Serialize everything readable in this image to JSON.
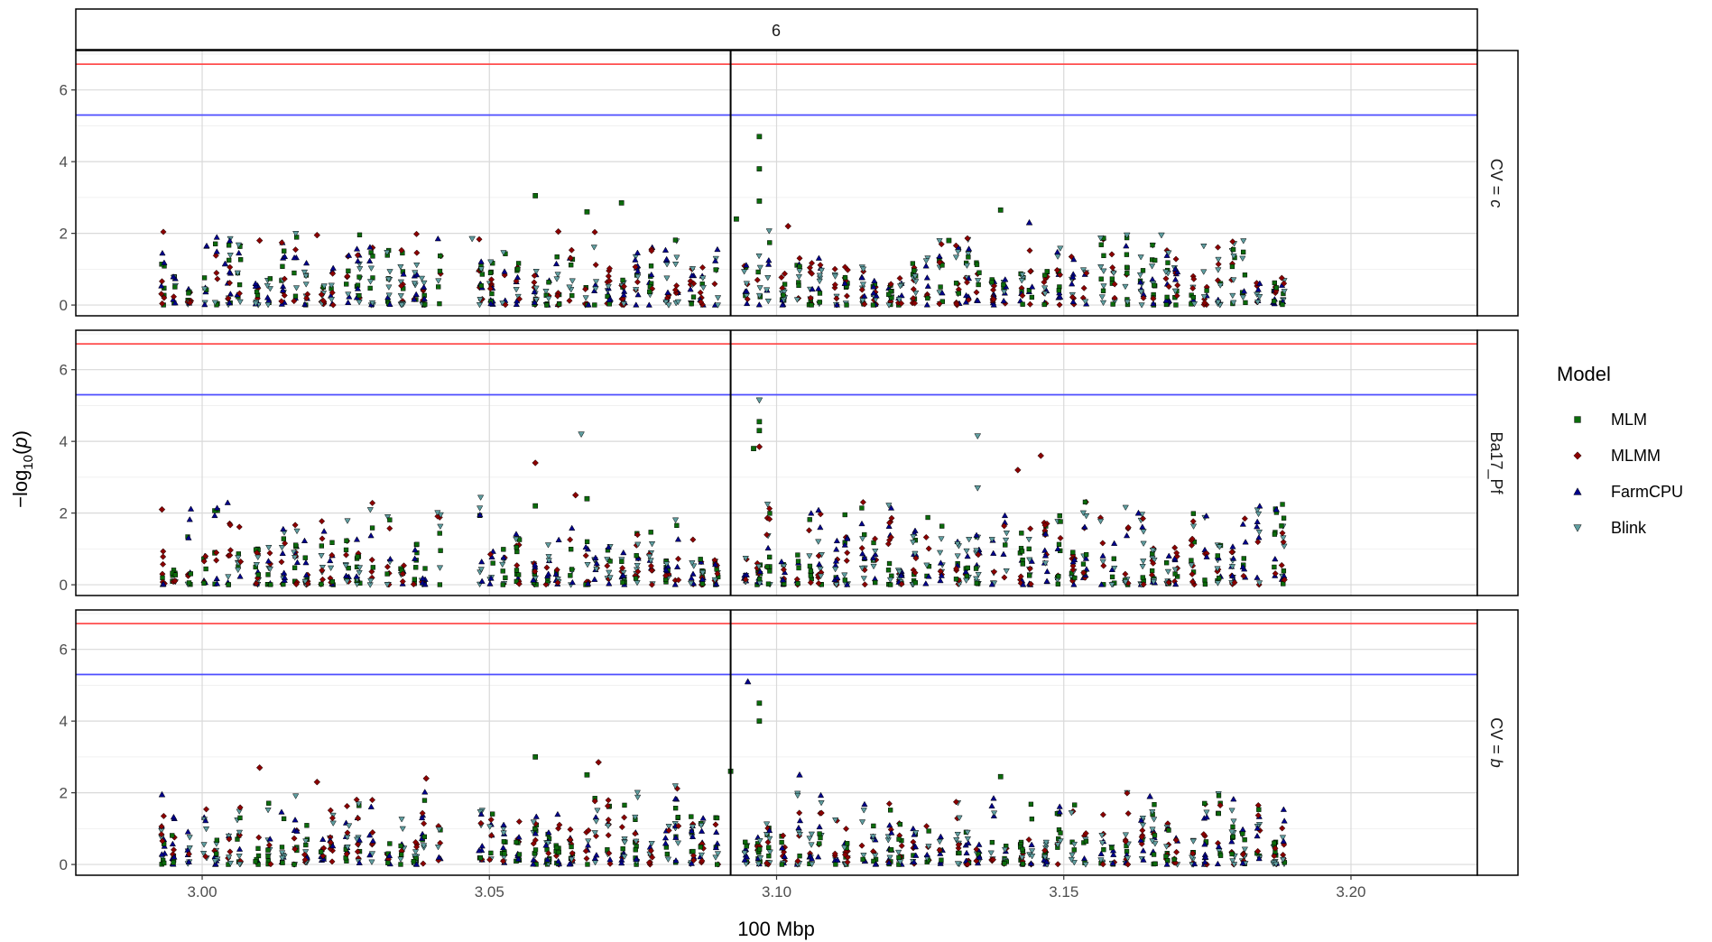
{
  "chart_data": {
    "type": "scatter",
    "facet_column_label": "6",
    "facet_row_labels": [
      "CV = c",
      "Ba17_Pf",
      "CV = b"
    ],
    "xlabel": "100 Mbp",
    "ylabel": "-log10(p)",
    "xlim": [
      2.978,
      3.222
    ],
    "ylim": [
      -0.3,
      7.1
    ],
    "x_ticks": [
      "3.00",
      "3.05",
      "3.10",
      "3.15",
      "3.20"
    ],
    "x_tick_values": [
      3.0,
      3.05,
      3.1,
      3.15,
      3.2
    ],
    "y_ticks": [
      "0",
      "2",
      "4",
      "6"
    ],
    "y_tick_values": [
      0,
      2,
      4,
      6
    ],
    "grid": true,
    "reference_lines": {
      "horizontal": [
        {
          "y": 6.72,
          "color": "#ff4d4d"
        },
        {
          "y": 5.3,
          "color": "#4d4dff"
        }
      ],
      "vertical": [
        {
          "x": 3.092,
          "color": "#000000"
        }
      ]
    },
    "legend": {
      "title": "Model",
      "position": "right",
      "entries": [
        {
          "name": "MLM",
          "shape": "square",
          "color": "#0b6b0b"
        },
        {
          "name": "MLMM",
          "shape": "diamond",
          "color": "#8b0000"
        },
        {
          "name": "FarmCPU",
          "shape": "triangle-up",
          "color": "#00008b"
        },
        {
          "name": "Blink",
          "shape": "triangle-down",
          "color": "#5f9ea0"
        }
      ]
    },
    "series": [
      {
        "name": "MLM",
        "values": [
          {
            "x": 3.058,
            "y": 3.05,
            "panel": 0
          },
          {
            "x": 3.067,
            "y": 2.6,
            "panel": 0
          },
          {
            "x": 3.073,
            "y": 2.85,
            "panel": 0
          },
          {
            "x": 3.093,
            "y": 2.4,
            "panel": 0
          },
          {
            "x": 3.097,
            "y": 4.7,
            "panel": 0
          },
          {
            "x": 3.097,
            "y": 3.8,
            "panel": 0
          },
          {
            "x": 3.097,
            "y": 2.9,
            "panel": 0
          },
          {
            "x": 3.139,
            "y": 2.65,
            "panel": 0
          },
          {
            "x": 3.13,
            "y": 1.8,
            "panel": 0
          },
          {
            "x": 3.097,
            "y": 4.55,
            "panel": 1
          },
          {
            "x": 3.097,
            "y": 4.3,
            "panel": 1
          },
          {
            "x": 3.096,
            "y": 3.8,
            "panel": 1
          },
          {
            "x": 3.058,
            "y": 2.2,
            "panel": 1
          },
          {
            "x": 3.067,
            "y": 2.4,
            "panel": 1
          },
          {
            "x": 3.058,
            "y": 3.0,
            "panel": 2
          },
          {
            "x": 3.097,
            "y": 4.5,
            "panel": 2
          },
          {
            "x": 3.097,
            "y": 4.0,
            "panel": 2
          },
          {
            "x": 3.092,
            "y": 2.6,
            "panel": 2
          },
          {
            "x": 3.067,
            "y": 2.5,
            "panel": 2
          },
          {
            "x": 3.139,
            "y": 2.45,
            "panel": 2
          }
        ]
      },
      {
        "name": "MLMM",
        "values": [
          {
            "x": 3.02,
            "y": 1.95,
            "panel": 0
          },
          {
            "x": 3.01,
            "y": 1.8,
            "panel": 0
          },
          {
            "x": 3.062,
            "y": 2.05,
            "panel": 0
          },
          {
            "x": 3.102,
            "y": 2.2,
            "panel": 0
          },
          {
            "x": 2.993,
            "y": 2.1,
            "panel": 1
          },
          {
            "x": 3.058,
            "y": 3.4,
            "panel": 1
          },
          {
            "x": 3.146,
            "y": 3.6,
            "panel": 1
          },
          {
            "x": 3.142,
            "y": 3.2,
            "panel": 1
          },
          {
            "x": 3.097,
            "y": 3.85,
            "panel": 1
          },
          {
            "x": 3.065,
            "y": 2.5,
            "panel": 1
          },
          {
            "x": 3.01,
            "y": 2.7,
            "panel": 2
          },
          {
            "x": 3.069,
            "y": 2.85,
            "panel": 2
          },
          {
            "x": 3.02,
            "y": 2.3,
            "panel": 2
          },
          {
            "x": 3.039,
            "y": 2.4,
            "panel": 2
          }
        ]
      },
      {
        "name": "FarmCPU",
        "values": [
          {
            "x": 3.144,
            "y": 2.3,
            "panel": 0
          },
          {
            "x": 3.004,
            "y": 1.15,
            "panel": 0
          },
          {
            "x": 3.187,
            "y": 2.1,
            "panel": 1
          },
          {
            "x": 3.163,
            "y": 2.0,
            "panel": 1
          },
          {
            "x": 3.095,
            "y": 5.1,
            "panel": 2
          },
          {
            "x": 3.104,
            "y": 2.5,
            "panel": 2
          },
          {
            "x": 3.165,
            "y": 1.9,
            "panel": 2
          },
          {
            "x": 2.993,
            "y": 1.95,
            "panel": 2
          }
        ]
      },
      {
        "name": "Blink",
        "values": [
          {
            "x": 3.097,
            "y": 5.15,
            "panel": 1
          },
          {
            "x": 3.066,
            "y": 4.2,
            "panel": 1
          },
          {
            "x": 3.135,
            "y": 4.15,
            "panel": 1
          },
          {
            "x": 3.135,
            "y": 2.7,
            "panel": 1
          },
          {
            "x": 3.167,
            "y": 1.95,
            "panel": 0
          },
          {
            "x": 3.161,
            "y": 1.95,
            "panel": 0
          },
          {
            "x": 3.047,
            "y": 1.85,
            "panel": 0
          }
        ]
      }
    ]
  }
}
